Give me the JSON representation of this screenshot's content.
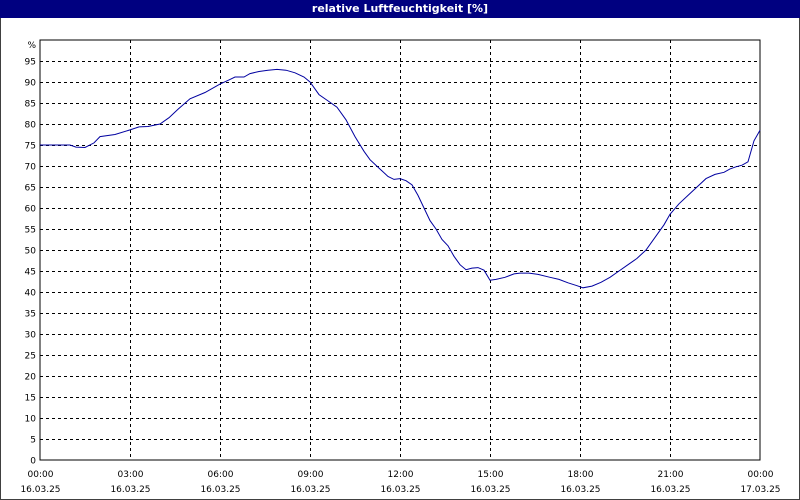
{
  "chart_data": {
    "type": "line",
    "title": "relative Luftfeuchtigkeit [%]",
    "ylabel": "%",
    "ylim": [
      0,
      100
    ],
    "yticks": [
      0,
      5,
      10,
      15,
      20,
      25,
      30,
      35,
      40,
      45,
      50,
      55,
      60,
      65,
      70,
      75,
      80,
      85,
      90,
      95
    ],
    "xlim": [
      0,
      24
    ],
    "xticks": [
      {
        "time": "00:00",
        "date": "16.03.25"
      },
      {
        "time": "03:00",
        "date": "16.03.25"
      },
      {
        "time": "06:00",
        "date": "16.03.25"
      },
      {
        "time": "09:00",
        "date": "16.03.25"
      },
      {
        "time": "12:00",
        "date": "16.03.25"
      },
      {
        "time": "15:00",
        "date": "16.03.25"
      },
      {
        "time": "18:00",
        "date": "16.03.25"
      },
      {
        "time": "21:00",
        "date": "16.03.25"
      },
      {
        "time": "00:00",
        "date": "17.03.25"
      }
    ],
    "grid": true,
    "line_color": "#0000a0",
    "series": [
      {
        "x": [
          0,
          0.5,
          1,
          1.2,
          1.5,
          1.8,
          2,
          2.5,
          3,
          3.3,
          3.6,
          4,
          4.3,
          4.6,
          5,
          5.5,
          6,
          6.3,
          6.5,
          6.8,
          7,
          7.3,
          7.6,
          7.9,
          8.2,
          8.5,
          8.8,
          9,
          9.3,
          9.6,
          9.9,
          10.2,
          10.5,
          10.8,
          11,
          11.3,
          11.6,
          11.8,
          12,
          12.2,
          12.4,
          12.6,
          12.8,
          13,
          13.2,
          13.4,
          13.6,
          13.8,
          14,
          14.2,
          14.4,
          14.6,
          14.8,
          15,
          15.2,
          15.5,
          15.8,
          16,
          16.3,
          16.6,
          17,
          17.3,
          17.6,
          17.9,
          18.1,
          18.4,
          18.7,
          19,
          19.3,
          19.6,
          19.9,
          20.2,
          20.5,
          20.8,
          21,
          21.3,
          21.6,
          21.9,
          22.2,
          22.5,
          22.8,
          23,
          23.2,
          23.4,
          23.6,
          23.8,
          24
        ],
        "y": [
          75,
          75,
          75,
          74.5,
          74.4,
          75.5,
          77,
          77.5,
          78.6,
          79.3,
          79.4,
          80,
          81.5,
          83.5,
          86,
          87.5,
          89.5,
          90.5,
          91.2,
          91.2,
          92,
          92.5,
          92.8,
          93,
          92.8,
          92.2,
          91.2,
          90,
          87,
          85.5,
          84,
          81,
          77,
          73.5,
          71.5,
          69.5,
          67.5,
          66.8,
          67,
          66.5,
          65.5,
          63,
          60,
          57,
          55,
          52.5,
          51,
          48.5,
          46.5,
          45.3,
          45.7,
          45.8,
          45.2,
          42.8,
          43,
          43.5,
          44.3,
          44.5,
          44.5,
          44.2,
          43.5,
          43,
          42.2,
          41.5,
          41,
          41.4,
          42.3,
          43.5,
          45,
          46.5,
          48,
          50,
          53,
          56,
          58.5,
          61,
          63,
          65,
          67,
          68,
          68.5,
          69.3,
          69.8,
          70.2,
          71,
          76,
          78.5
        ]
      }
    ]
  }
}
